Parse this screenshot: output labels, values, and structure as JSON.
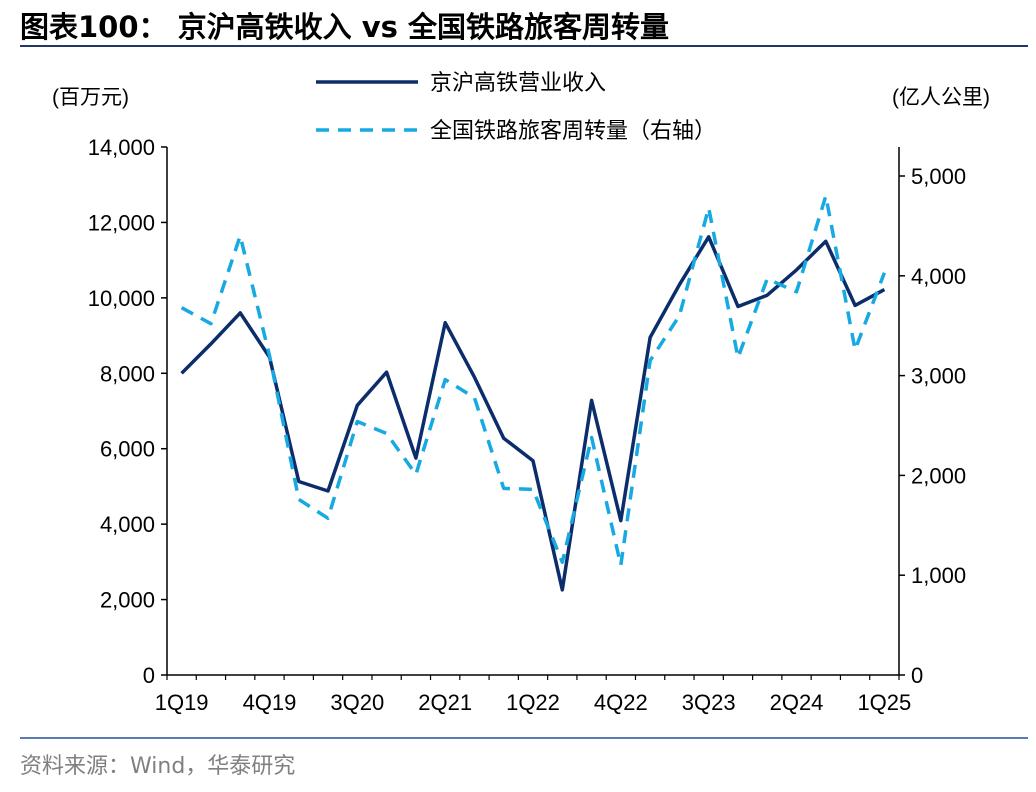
{
  "title": "图表100：  京沪高铁收入 vs 全国铁路旅客周转量",
  "source": "资料来源：Wind，华泰研究",
  "chart_data": {
    "type": "line",
    "left_unit": "(百万元)",
    "right_unit": "(亿人公里)",
    "categories": [
      "1Q19",
      "2Q19",
      "3Q19",
      "4Q19",
      "1Q20",
      "2Q20",
      "3Q20",
      "4Q20",
      "1Q21",
      "2Q21",
      "3Q21",
      "4Q21",
      "1Q22",
      "2Q22",
      "3Q22",
      "4Q22",
      "1Q23",
      "2Q23",
      "3Q23",
      "4Q23",
      "1Q24",
      "2Q24",
      "3Q24",
      "4Q24",
      "1Q25"
    ],
    "x_tick_labels": [
      "1Q19",
      "4Q19",
      "3Q20",
      "2Q21",
      "1Q22",
      "4Q22",
      "3Q23",
      "2Q24",
      "1Q25"
    ],
    "y_left": {
      "ylim": [
        0,
        14000
      ],
      "ticks": [
        0,
        2000,
        4000,
        6000,
        8000,
        10000,
        12000,
        14000
      ],
      "tick_labels": [
        "0",
        "2,000",
        "4,000",
        "6,000",
        "8,000",
        "10,000",
        "12,000",
        "14,000"
      ]
    },
    "y_right": {
      "ylim": [
        0,
        5300
      ],
      "ticks": [
        0,
        1000,
        2000,
        3000,
        4000,
        5000
      ],
      "tick_labels": [
        "0",
        "1,000",
        "2,000",
        "3,000",
        "4,000",
        "5,000"
      ]
    },
    "series": [
      {
        "name": "京沪高铁营业收入",
        "axis": "left",
        "style": "solid",
        "color": "#0c2d6b",
        "values": [
          8000,
          8780,
          9600,
          8430,
          5130,
          4880,
          7150,
          8030,
          5750,
          9340,
          7900,
          6280,
          5680,
          2260,
          7280,
          4090,
          8950,
          10350,
          11620,
          9770,
          10070,
          10740,
          11500,
          9800,
          10220
        ]
      },
      {
        "name": "全国铁路旅客周转量（右轴）",
        "axis": "right",
        "style": "dashed",
        "color": "#17a9e1",
        "values": [
          3680,
          3520,
          4400,
          3200,
          1760,
          1570,
          2540,
          2420,
          2010,
          2960,
          2780,
          1870,
          1860,
          1130,
          2380,
          1100,
          3150,
          3600,
          4680,
          3180,
          3970,
          3840,
          4800,
          3260,
          4030
        ]
      }
    ]
  }
}
